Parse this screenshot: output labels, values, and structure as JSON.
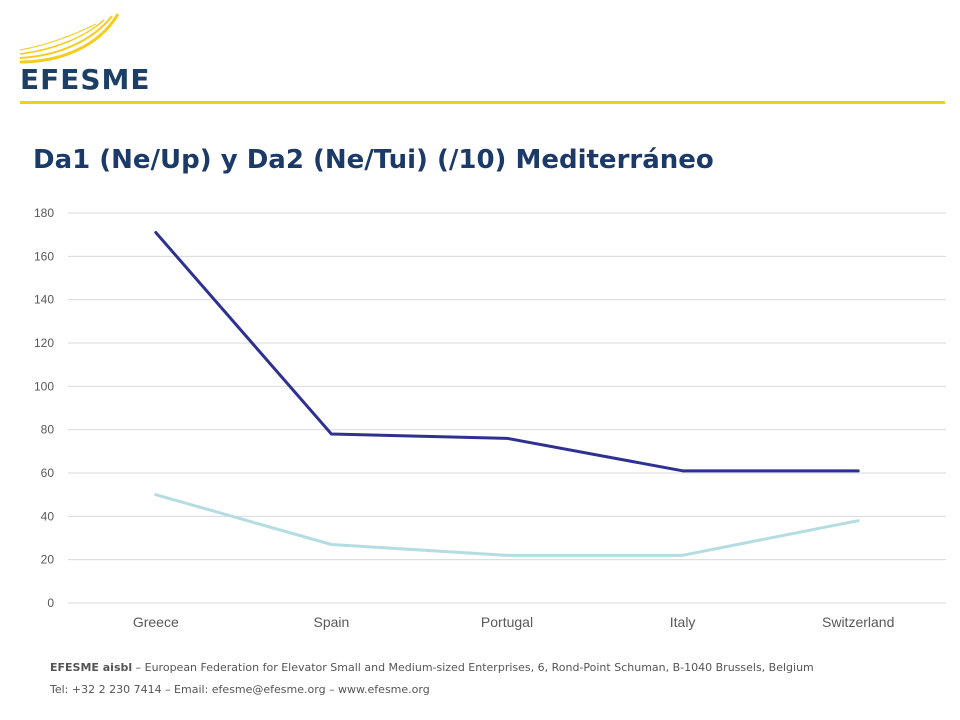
{
  "header": {
    "logo_text": "EFESME"
  },
  "title": "Da1 (Ne/Up) y Da2 (Ne/Tui) (/10) Mediterráneo",
  "chart_data": {
    "type": "line",
    "title": "Da1 (Ne/Up) y Da2 (Ne/Tui) (/10) Mediterráneo",
    "xlabel": "",
    "ylabel": "",
    "categories": [
      "Greece",
      "Spain",
      "Portugal",
      "Italy",
      "Switzerland"
    ],
    "ylim": [
      0,
      180
    ],
    "yticks": [
      0,
      20,
      40,
      60,
      80,
      100,
      120,
      140,
      160,
      180
    ],
    "grid": true,
    "legend": "none",
    "series": [
      {
        "values": [
          171,
          78,
          76,
          61,
          61
        ],
        "color": "#2e3192"
      },
      {
        "values": [
          50,
          27,
          22,
          22,
          38
        ],
        "color": "#b4dde3"
      }
    ]
  },
  "footer": {
    "org": "EFESME aisbl",
    "line1_rest": " – European Federation for Elevator Small and Medium-sized Enterprises, 6, Rond-Point Schuman, B-1040 Brussels, Belgium",
    "line2": "Tel: +32 2 230 7414 – Email: efesme@efesme.org – www.efesme.org"
  },
  "colors": {
    "accent": "#f5cd1a",
    "title": "#1b3a68",
    "grid": "#d9d9d9",
    "axis_text": "#595959"
  }
}
